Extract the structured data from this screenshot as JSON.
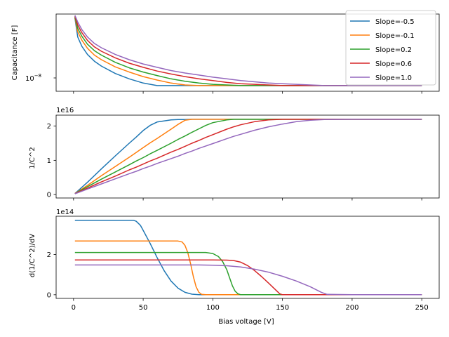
{
  "x_label": "Bias voltage [V]",
  "x_ticks": [
    "0",
    "50",
    "100",
    "150",
    "200",
    "250"
  ],
  "panels": [
    {
      "y_label": "Capacitance [F]",
      "multiplier": "",
      "y_ticks": [
        "10^-8"
      ]
    },
    {
      "y_label": "1/C^2",
      "multiplier": "1e16",
      "y_ticks": [
        "0",
        "1",
        "2"
      ]
    },
    {
      "y_label": "d(1/C^2)/dV",
      "multiplier": "1e14",
      "y_ticks": [
        "0",
        "2"
      ]
    }
  ],
  "legend": {
    "location": "upper right of top panel",
    "entries": [
      "Slope=-0.5",
      "Slope=-0.1",
      "Slope=0.2",
      "Slope=0.6",
      "Slope=1.0"
    ]
  },
  "colors": {
    "Slope=-0.5": "#1f77b4",
    "Slope=-0.1": "#ff7f0e",
    "Slope=0.2": "#2ca02c",
    "Slope=0.6": "#d62728",
    "Slope=1.0": "#9467bd"
  },
  "chart_data": [
    {
      "type": "line",
      "panel": "Capacitance",
      "xlabel": "",
      "ylabel": "Capacitance [F]",
      "yscale": "log",
      "xlim": [
        -12.5,
        262.5
      ],
      "ylim": [
        0.0059,
        0.0335
      ],
      "grid": false,
      "x": [
        1,
        3,
        6,
        10,
        15,
        20,
        30,
        40,
        50,
        60,
        70,
        80,
        90,
        100,
        110,
        120,
        130,
        140,
        150,
        160,
        170,
        180,
        190,
        200,
        220,
        250
      ],
      "series": [
        {
          "name": "Slope=-0.5",
          "values": [
            0.0305,
            0.02,
            0.0162,
            0.0135,
            0.0116,
            0.0104,
            0.0088,
            0.0078,
            0.0071,
            0.0067,
            0.0067,
            0.0067,
            0.0067,
            0.0067,
            0.0067,
            0.0067,
            0.0067,
            0.0067,
            0.0067,
            0.0067,
            0.0067,
            0.0067,
            0.0067,
            0.0067,
            0.0067,
            0.0067
          ]
        },
        {
          "name": "Slope=-0.1",
          "values": [
            0.031,
            0.0225,
            0.0186,
            0.0155,
            0.0133,
            0.012,
            0.0102,
            0.0091,
            0.0082,
            0.0076,
            0.0071,
            0.0068,
            0.0067,
            0.0067,
            0.0067,
            0.0067,
            0.0067,
            0.0067,
            0.0067,
            0.0067,
            0.0067,
            0.0067,
            0.0067,
            0.0067,
            0.0067,
            0.0067
          ]
        },
        {
          "name": "Slope=0.2",
          "values": [
            0.0315,
            0.0243,
            0.0203,
            0.017,
            0.0147,
            0.0133,
            0.0113,
            0.01,
            0.0091,
            0.0084,
            0.0078,
            0.0074,
            0.0071,
            0.0069,
            0.0068,
            0.0067,
            0.0067,
            0.0067,
            0.0067,
            0.0067,
            0.0067,
            0.0067,
            0.0067,
            0.0067,
            0.0067,
            0.0067
          ]
        },
        {
          "name": "Slope=0.6",
          "values": [
            0.032,
            0.0262,
            0.022,
            0.0185,
            0.016,
            0.0145,
            0.0125,
            0.0111,
            0.0101,
            0.0093,
            0.0087,
            0.0082,
            0.0078,
            0.0075,
            0.0072,
            0.007,
            0.0069,
            0.0068,
            0.0067,
            0.0067,
            0.0067,
            0.0067,
            0.0067,
            0.0067,
            0.0067,
            0.0067
          ]
        },
        {
          "name": "Slope=1.0",
          "values": [
            0.0325,
            0.028,
            0.0236,
            0.02,
            0.0173,
            0.0157,
            0.0135,
            0.012,
            0.0109,
            0.0101,
            0.0094,
            0.0089,
            0.0085,
            0.0081,
            0.0078,
            0.0075,
            0.0073,
            0.0071,
            0.007,
            0.0069,
            0.0068,
            0.0067,
            0.0067,
            0.0067,
            0.0067,
            0.0067
          ]
        }
      ]
    },
    {
      "type": "line",
      "panel": "1/C^2",
      "xlabel": "",
      "ylabel": "1/C^2",
      "y_multiplier": "1e16",
      "xlim": [
        -12.5,
        262.5
      ],
      "ylim": [
        -0.1,
        2.32
      ],
      "grid": false,
      "x": [
        1,
        10,
        20,
        30,
        40,
        45,
        50,
        55,
        60,
        70,
        75,
        80,
        85,
        90,
        95,
        100,
        110,
        115,
        120,
        130,
        140,
        150,
        160,
        170,
        180,
        200,
        250
      ],
      "series": [
        {
          "name": "Slope=-0.5",
          "values": [
            0.03,
            0.36,
            0.75,
            1.13,
            1.5,
            1.68,
            1.87,
            2.02,
            2.12,
            2.18,
            2.19,
            2.19,
            2.2,
            2.2,
            2.2,
            2.2,
            2.2,
            2.2,
            2.2,
            2.2,
            2.2,
            2.2,
            2.2,
            2.2,
            2.2,
            2.2,
            2.2
          ]
        },
        {
          "name": "Slope=-0.1",
          "values": [
            0.03,
            0.27,
            0.55,
            0.82,
            1.09,
            1.23,
            1.37,
            1.51,
            1.64,
            1.91,
            2.05,
            2.17,
            2.2,
            2.2,
            2.2,
            2.2,
            2.2,
            2.2,
            2.2,
            2.2,
            2.2,
            2.2,
            2.2,
            2.2,
            2.2,
            2.2,
            2.2
          ]
        },
        {
          "name": "Slope=0.2",
          "values": [
            0.03,
            0.23,
            0.45,
            0.66,
            0.87,
            0.98,
            1.08,
            1.19,
            1.29,
            1.5,
            1.61,
            1.71,
            1.82,
            1.92,
            2.02,
            2.1,
            2.18,
            2.2,
            2.2,
            2.2,
            2.2,
            2.2,
            2.2,
            2.2,
            2.2,
            2.2,
            2.2
          ]
        },
        {
          "name": "Slope=0.6",
          "values": [
            0.03,
            0.19,
            0.37,
            0.54,
            0.72,
            0.8,
            0.89,
            0.98,
            1.06,
            1.24,
            1.32,
            1.41,
            1.5,
            1.58,
            1.67,
            1.75,
            1.91,
            1.98,
            2.04,
            2.13,
            2.18,
            2.2,
            2.2,
            2.2,
            2.2,
            2.2,
            2.2
          ]
        },
        {
          "name": "Slope=1.0",
          "values": [
            0.02,
            0.16,
            0.31,
            0.46,
            0.61,
            0.68,
            0.76,
            0.83,
            0.91,
            1.05,
            1.12,
            1.2,
            1.27,
            1.35,
            1.42,
            1.49,
            1.63,
            1.7,
            1.76,
            1.88,
            1.98,
            2.06,
            2.13,
            2.17,
            2.19,
            2.2,
            2.2
          ]
        }
      ]
    },
    {
      "type": "line",
      "panel": "d(1/C^2)/dV",
      "xlabel": "Bias voltage [V]",
      "ylabel": "d(1/C^2)/dV",
      "y_multiplier": "1e14",
      "xlim": [
        -12.5,
        262.5
      ],
      "ylim": [
        -0.18,
        3.9
      ],
      "grid": false,
      "series": [
        {
          "name": "Slope=-0.5",
          "x": [
            1,
            10,
            20,
            30,
            40,
            43,
            45,
            48,
            50,
            55,
            60,
            65,
            70,
            75,
            80,
            85,
            90,
            100,
            150,
            250
          ],
          "values": [
            3.7,
            3.7,
            3.7,
            3.7,
            3.7,
            3.7,
            3.65,
            3.45,
            3.2,
            2.55,
            1.85,
            1.2,
            0.68,
            0.33,
            0.12,
            0.03,
            0.0,
            0.0,
            0.0,
            0.0
          ]
        },
        {
          "name": "Slope=-0.1",
          "x": [
            1,
            20,
            40,
            60,
            75,
            78,
            80,
            82,
            84,
            86,
            88,
            90,
            92,
            95,
            100,
            150,
            250
          ],
          "values": [
            2.67,
            2.67,
            2.67,
            2.67,
            2.67,
            2.62,
            2.45,
            2.1,
            1.55,
            0.9,
            0.4,
            0.12,
            0.02,
            0.0,
            0.0,
            0.0,
            0.0
          ]
        },
        {
          "name": "Slope=0.2",
          "x": [
            1,
            30,
            60,
            90,
            95,
            100,
            104,
            107,
            110,
            112,
            114,
            116,
            118,
            120,
            150,
            250
          ],
          "values": [
            2.1,
            2.1,
            2.1,
            2.1,
            2.1,
            2.05,
            1.9,
            1.65,
            1.25,
            0.85,
            0.45,
            0.18,
            0.05,
            0.0,
            0.0,
            0.0
          ]
        },
        {
          "name": "Slope=0.6",
          "x": [
            1,
            40,
            80,
            100,
            110,
            115,
            120,
            125,
            130,
            135,
            140,
            145,
            148,
            150,
            200,
            250
          ],
          "values": [
            1.73,
            1.73,
            1.73,
            1.73,
            1.72,
            1.7,
            1.62,
            1.45,
            1.2,
            0.9,
            0.58,
            0.25,
            0.05,
            0.0,
            0.0,
            0.0
          ]
        },
        {
          "name": "Slope=1.0",
          "x": [
            1,
            50,
            90,
            100,
            110,
            120,
            130,
            140,
            150,
            160,
            170,
            178,
            182,
            200,
            250
          ],
          "values": [
            1.48,
            1.48,
            1.48,
            1.47,
            1.44,
            1.38,
            1.27,
            1.12,
            0.92,
            0.68,
            0.4,
            0.12,
            0.02,
            0.0,
            0.0
          ]
        }
      ]
    }
  ]
}
